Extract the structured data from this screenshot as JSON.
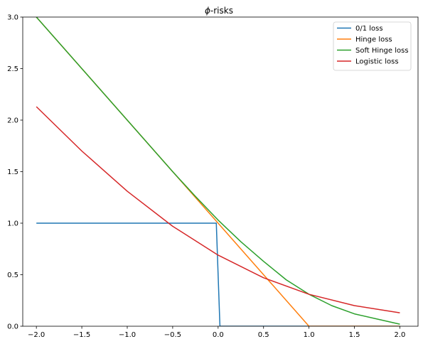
{
  "chart_data": {
    "type": "line",
    "title": "ϕ-risks",
    "title_symbol": "ϕ",
    "title_rest": "-risks",
    "xlabel": "",
    "ylabel": "",
    "xlim": [
      -2.15,
      2.2
    ],
    "ylim": [
      0.0,
      3.0
    ],
    "xticks": [
      -2.0,
      -1.5,
      -1.0,
      -0.5,
      0.0,
      0.5,
      1.0,
      1.5,
      2.0
    ],
    "xtick_labels": [
      "−2.0",
      "−1.5",
      "−1.0",
      "−0.5",
      "0.0",
      "0.5",
      "1.0",
      "1.5",
      "2.0"
    ],
    "yticks": [
      0.0,
      0.5,
      1.0,
      1.5,
      2.0,
      2.5,
      3.0
    ],
    "ytick_labels": [
      "0.0",
      "0.5",
      "1.0",
      "1.5",
      "2.0",
      "2.5",
      "3.0"
    ],
    "grid": false,
    "legend_position": "top-right",
    "series": [
      {
        "name": "0/1 loss",
        "color": "#1f77b4",
        "points": [
          [
            -2.0,
            1.0
          ],
          [
            -0.02,
            1.0
          ],
          [
            0.02,
            0.0
          ],
          [
            2.0,
            0.0
          ]
        ]
      },
      {
        "name": "Hinge loss",
        "color": "#ff7f0e",
        "points": [
          [
            -2.0,
            3.0
          ],
          [
            -1.5,
            2.5
          ],
          [
            -1.0,
            2.0
          ],
          [
            -0.5,
            1.5
          ],
          [
            0.0,
            1.0
          ],
          [
            0.5,
            0.5
          ],
          [
            1.0,
            0.0
          ],
          [
            1.5,
            0.0
          ],
          [
            2.0,
            0.0
          ]
        ]
      },
      {
        "name": "Soft Hinge loss",
        "color": "#2ca02c",
        "points": [
          [
            -2.0,
            3.0
          ],
          [
            -1.5,
            2.5
          ],
          [
            -1.0,
            2.0
          ],
          [
            -0.5,
            1.5
          ],
          [
            -0.25,
            1.26
          ],
          [
            0.0,
            1.03
          ],
          [
            0.25,
            0.82
          ],
          [
            0.5,
            0.63
          ],
          [
            0.75,
            0.45
          ],
          [
            1.0,
            0.31
          ],
          [
            1.25,
            0.2
          ],
          [
            1.5,
            0.12
          ],
          [
            1.75,
            0.07
          ],
          [
            2.0,
            0.02
          ]
        ]
      },
      {
        "name": "Logistic loss",
        "color": "#d62728",
        "points": [
          [
            -2.0,
            2.13
          ],
          [
            -1.5,
            1.7
          ],
          [
            -1.0,
            1.31
          ],
          [
            -0.5,
            0.97
          ],
          [
            0.0,
            0.69
          ],
          [
            0.5,
            0.47
          ],
          [
            1.0,
            0.31
          ],
          [
            1.5,
            0.2
          ],
          [
            2.0,
            0.13
          ]
        ]
      }
    ]
  }
}
